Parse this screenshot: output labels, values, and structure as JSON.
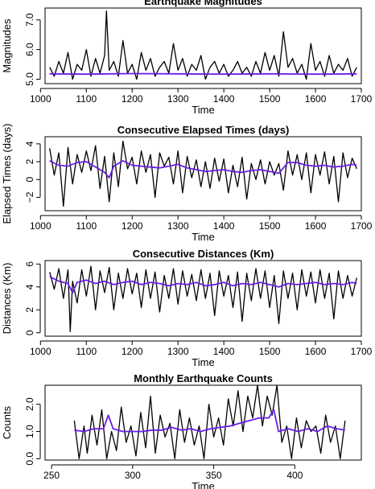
{
  "chart_data": [
    {
      "type": "line",
      "title": "Earthquake Magnitudes",
      "xlabel": "Time",
      "ylabel": "Magnitudes",
      "xlim": [
        1010,
        1700
      ],
      "ylim": [
        4.85,
        7.4
      ],
      "xticks": [
        1000,
        1100,
        1200,
        1300,
        1400,
        1500,
        1600,
        1700
      ],
      "xtick_labels": [
        "1000",
        "1100",
        "1200",
        "1300",
        "1400",
        "1500",
        "1600",
        "1700"
      ],
      "yticks": [
        5.0,
        6.0,
        7.0
      ],
      "ytick_labels": [
        "5.0",
        "6.0",
        "7.0"
      ],
      "grid": false,
      "series": [
        {
          "color": "#000000",
          "x": [
            1020,
            1030,
            1040,
            1050,
            1060,
            1070,
            1080,
            1090,
            1100,
            1110,
            1120,
            1130,
            1140,
            1144,
            1150,
            1160,
            1170,
            1180,
            1190,
            1200,
            1210,
            1220,
            1230,
            1240,
            1250,
            1260,
            1270,
            1280,
            1290,
            1300,
            1310,
            1320,
            1330,
            1340,
            1350,
            1360,
            1370,
            1380,
            1390,
            1400,
            1410,
            1420,
            1430,
            1440,
            1450,
            1460,
            1470,
            1480,
            1490,
            1500,
            1510,
            1520,
            1530,
            1540,
            1550,
            1560,
            1570,
            1580,
            1590,
            1600,
            1610,
            1620,
            1630,
            1640,
            1650,
            1660,
            1670,
            1680,
            1690
          ],
          "values": [
            5.4,
            5.1,
            5.6,
            5.2,
            5.9,
            5.0,
            5.5,
            5.3,
            6.0,
            5.1,
            5.7,
            5.2,
            5.8,
            7.3,
            5.3,
            5.6,
            5.1,
            6.3,
            5.2,
            5.5,
            5.0,
            5.9,
            5.3,
            5.7,
            5.1,
            5.4,
            5.6,
            5.2,
            6.2,
            5.3,
            5.7,
            5.1,
            5.5,
            5.3,
            5.8,
            5.0,
            5.4,
            5.6,
            5.2,
            5.5,
            5.1,
            5.3,
            5.6,
            5.2,
            5.4,
            5.1,
            5.6,
            5.2,
            5.9,
            5.3,
            5.8,
            5.1,
            6.6,
            5.4,
            5.7,
            5.2,
            5.5,
            5.0,
            6.2,
            5.3,
            5.6,
            5.1,
            5.8,
            5.2,
            5.5,
            5.3,
            5.7,
            5.1,
            5.4
          ]
        },
        {
          "color": "#6a1fe6",
          "x": [
            1020,
            1100,
            1200,
            1300,
            1400,
            1500,
            1600,
            1690
          ],
          "values": [
            5.18,
            5.17,
            5.19,
            5.18,
            5.17,
            5.18,
            5.17,
            5.18
          ]
        }
      ]
    },
    {
      "type": "line",
      "title": "Consecutive Elapsed Times (days)",
      "xlabel": "Time",
      "ylabel": "Elapsed Times (days)",
      "xlim": [
        1010,
        1700
      ],
      "ylim": [
        -3.5,
        4.8
      ],
      "xticks": [
        1000,
        1100,
        1200,
        1300,
        1400,
        1500,
        1600,
        1700
      ],
      "xtick_labels": [
        "1000",
        "1100",
        "1200",
        "1300",
        "1400",
        "1500",
        "1600",
        "1700"
      ],
      "yticks": [
        -2,
        0,
        2,
        4
      ],
      "ytick_labels": [
        "−2",
        "0",
        "2",
        "4"
      ],
      "grid": false,
      "series": [
        {
          "color": "#000000",
          "x": [
            1020,
            1030,
            1040,
            1050,
            1060,
            1070,
            1080,
            1090,
            1100,
            1110,
            1120,
            1130,
            1140,
            1150,
            1160,
            1170,
            1180,
            1190,
            1200,
            1210,
            1220,
            1230,
            1240,
            1250,
            1260,
            1270,
            1280,
            1290,
            1300,
            1310,
            1320,
            1330,
            1340,
            1350,
            1360,
            1370,
            1380,
            1390,
            1400,
            1410,
            1420,
            1430,
            1440,
            1450,
            1460,
            1470,
            1480,
            1490,
            1500,
            1510,
            1520,
            1530,
            1540,
            1550,
            1560,
            1570,
            1580,
            1590,
            1600,
            1610,
            1620,
            1630,
            1640,
            1650,
            1660,
            1670,
            1680,
            1690
          ],
          "values": [
            3.5,
            0.5,
            3.0,
            -3.0,
            3.6,
            -0.5,
            2.8,
            0.8,
            3.2,
            1.0,
            3.8,
            -1.0,
            2.6,
            -2.5,
            3.0,
            -0.8,
            4.3,
            1.2,
            2.5,
            -0.5,
            3.2,
            0.8,
            2.8,
            -2.0,
            3.0,
            1.5,
            2.5,
            -0.5,
            3.2,
            -1.5,
            2.6,
            0.2,
            2.2,
            -0.8,
            2.0,
            -1.0,
            2.4,
            -0.2,
            2.3,
            -1.5,
            1.6,
            -0.8,
            2.5,
            -2.2,
            1.8,
            0.0,
            2.2,
            -0.5,
            2.0,
            0.5,
            1.8,
            -1.2,
            3.2,
            0.5,
            2.8,
            0.0,
            3.0,
            -1.5,
            2.8,
            0.5,
            3.1,
            -0.5,
            2.6,
            -2.5,
            3.0,
            0.2,
            2.4,
            1.2
          ]
        },
        {
          "color": "#6a1fe6",
          "x": [
            1020,
            1040,
            1060,
            1080,
            1100,
            1120,
            1140,
            1150,
            1160,
            1180,
            1200,
            1220,
            1240,
            1260,
            1280,
            1300,
            1320,
            1340,
            1360,
            1380,
            1400,
            1420,
            1440,
            1460,
            1480,
            1500,
            1520,
            1540,
            1560,
            1580,
            1600,
            1620,
            1640,
            1660,
            1680,
            1690
          ],
          "values": [
            2.1,
            1.6,
            1.5,
            1.9,
            2.0,
            1.4,
            0.8,
            0.2,
            1.5,
            2.1,
            1.6,
            1.5,
            1.4,
            1.3,
            1.5,
            1.7,
            1.3,
            1.1,
            0.9,
            1.0,
            1.1,
            0.9,
            0.8,
            1.0,
            1.1,
            0.9,
            0.7,
            1.9,
            1.9,
            1.6,
            1.5,
            1.6,
            1.4,
            1.5,
            1.7,
            1.6
          ]
        }
      ]
    },
    {
      "type": "line",
      "title": "Consecutive Distances (Km)",
      "xlabel": "Time",
      "ylabel": "Distances (Km)",
      "xlim": [
        1010,
        1700
      ],
      "ylim": [
        -0.3,
        6.3
      ],
      "xticks": [
        1000,
        1100,
        1200,
        1300,
        1400,
        1500,
        1600,
        1700
      ],
      "xtick_labels": [
        "1000",
        "1100",
        "1200",
        "1300",
        "1400",
        "1500",
        "1600",
        "1700"
      ],
      "yticks": [
        0,
        2,
        4,
        6
      ],
      "ytick_labels": [
        "0",
        "2",
        "4",
        "6"
      ],
      "grid": false,
      "series": [
        {
          "color": "#000000",
          "x": [
            1020,
            1030,
            1040,
            1050,
            1060,
            1065,
            1070,
            1080,
            1090,
            1100,
            1110,
            1120,
            1130,
            1140,
            1150,
            1160,
            1170,
            1180,
            1190,
            1200,
            1210,
            1220,
            1230,
            1240,
            1250,
            1260,
            1270,
            1280,
            1290,
            1300,
            1310,
            1320,
            1330,
            1340,
            1350,
            1360,
            1370,
            1380,
            1390,
            1400,
            1410,
            1420,
            1430,
            1440,
            1450,
            1460,
            1470,
            1480,
            1490,
            1500,
            1510,
            1520,
            1530,
            1540,
            1550,
            1560,
            1570,
            1580,
            1590,
            1600,
            1610,
            1620,
            1630,
            1640,
            1650,
            1660,
            1670,
            1680,
            1690
          ],
          "values": [
            5.3,
            3.8,
            5.6,
            3.0,
            5.5,
            0.1,
            4.5,
            2.6,
            5.5,
            3.2,
            5.8,
            2.0,
            5.4,
            3.5,
            5.7,
            2.0,
            5.2,
            3.0,
            5.6,
            3.4,
            5.2,
            2.2,
            5.5,
            3.0,
            5.3,
            1.8,
            5.0,
            3.0,
            5.6,
            2.5,
            5.4,
            3.2,
            5.1,
            2.8,
            5.5,
            3.0,
            5.2,
            1.5,
            5.4,
            3.2,
            5.0,
            2.2,
            5.3,
            1.0,
            5.2,
            2.8,
            5.6,
            3.0,
            5.4,
            2.2,
            5.0,
            0.8,
            5.4,
            3.0,
            5.2,
            2.0,
            5.5,
            3.2,
            5.3,
            2.6,
            5.5,
            3.0,
            5.2,
            1.2,
            5.4,
            3.0,
            5.0,
            3.2,
            4.8
          ]
        },
        {
          "color": "#6a1fe6",
          "x": [
            1020,
            1040,
            1060,
            1070,
            1080,
            1100,
            1120,
            1140,
            1160,
            1180,
            1200,
            1220,
            1240,
            1260,
            1280,
            1300,
            1320,
            1340,
            1360,
            1380,
            1400,
            1420,
            1440,
            1460,
            1480,
            1500,
            1520,
            1540,
            1560,
            1580,
            1600,
            1620,
            1640,
            1660,
            1680,
            1690
          ],
          "values": [
            4.9,
            4.5,
            4.3,
            3.5,
            4.4,
            4.6,
            4.3,
            4.5,
            4.2,
            4.4,
            4.5,
            4.2,
            4.4,
            4.3,
            4.1,
            4.3,
            4.2,
            4.4,
            4.1,
            4.2,
            4.4,
            4.1,
            4.3,
            4.2,
            4.4,
            4.2,
            4.0,
            4.3,
            4.2,
            4.3,
            4.4,
            4.2,
            4.3,
            4.2,
            4.4,
            4.3
          ]
        }
      ]
    },
    {
      "type": "line",
      "title": "Monthly Earthquake Counts",
      "xlabel": "Time",
      "ylabel": "Counts",
      "xlim": [
        246,
        441
      ],
      "ylim": [
        -0.05,
        2.7
      ],
      "xticks": [
        250,
        300,
        350,
        400
      ],
      "xtick_labels": [
        "250",
        "300",
        "350",
        "400"
      ],
      "yticks": [
        0.0,
        1.0,
        2.0
      ],
      "ytick_labels": [
        "0.0",
        "1.0",
        "2.0"
      ],
      "grid": false,
      "series": [
        {
          "color": "#000000",
          "x": [
            264,
            267,
            270,
            272,
            275,
            278,
            281,
            284,
            287,
            290,
            293,
            296,
            299,
            302,
            305,
            308,
            311,
            314,
            317,
            320,
            323,
            326,
            329,
            332,
            335,
            338,
            341,
            344,
            347,
            350,
            353,
            356,
            359,
            362,
            365,
            368,
            371,
            374,
            377,
            380,
            383,
            386,
            389,
            392,
            395,
            398,
            401,
            404,
            407,
            410,
            413,
            416,
            419,
            422,
            425,
            428,
            431
          ],
          "values": [
            1.4,
            0.0,
            1.2,
            0.2,
            1.6,
            0.5,
            1.8,
            0.0,
            1.0,
            0.3,
            1.9,
            0.6,
            1.2,
            0.1,
            1.7,
            0.4,
            2.3,
            0.2,
            1.6,
            0.8,
            1.3,
            0.0,
            1.8,
            0.6,
            1.5,
            0.5,
            1.2,
            0.0,
            2.0,
            0.8,
            1.5,
            0.5,
            2.2,
            1.2,
            2.5,
            1.0,
            2.3,
            1.5,
            2.7,
            1.2,
            2.3,
            1.6,
            2.7,
            0.6,
            1.2,
            0.0,
            1.5,
            0.4,
            1.4,
            1.0,
            1.2,
            0.2,
            1.6,
            0.6,
            1.2,
            0.0,
            1.4
          ]
        },
        {
          "color": "#6a1fe6",
          "x": [
            264,
            270,
            276,
            282,
            285,
            288,
            294,
            300,
            306,
            312,
            318,
            324,
            330,
            336,
            342,
            348,
            354,
            360,
            366,
            372,
            378,
            384,
            387,
            390,
            396,
            402,
            408,
            414,
            420,
            426,
            431
          ],
          "values": [
            1.05,
            1.0,
            1.1,
            1.1,
            1.6,
            1.1,
            1.0,
            1.0,
            1.0,
            1.05,
            1.05,
            1.15,
            1.05,
            1.1,
            1.0,
            1.1,
            1.15,
            1.2,
            1.3,
            1.4,
            1.5,
            1.5,
            1.8,
            1.0,
            1.1,
            1.0,
            1.1,
            1.0,
            1.2,
            1.1,
            1.05
          ]
        }
      ]
    }
  ]
}
